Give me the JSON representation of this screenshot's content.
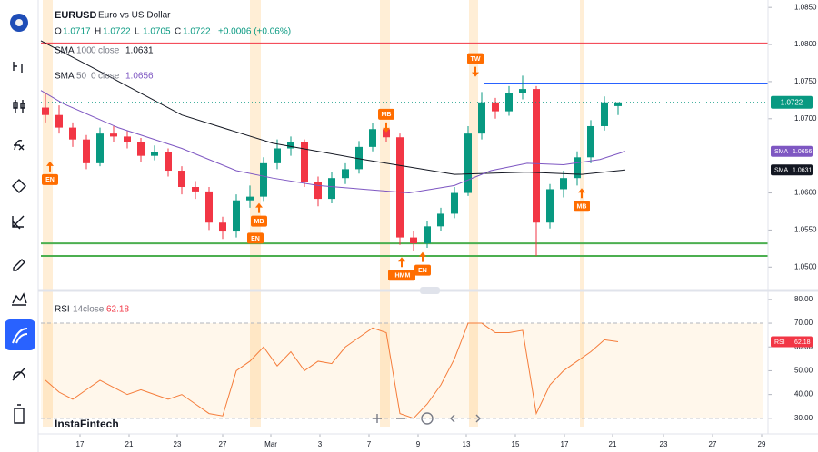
{
  "header": {
    "symbol": "EURUSD",
    "description": "Euro vs US Dollar",
    "ohlc_labels": [
      "O",
      "H",
      "L",
      "C"
    ],
    "change": "+0.0006 (+0.06%)"
  },
  "watermark": "InstaFintech",
  "chart_data": [
    {
      "type": "candlestick",
      "up_color": "#089981",
      "down_color": "#f23645",
      "x": [
        1,
        4,
        7,
        10,
        13,
        16,
        19,
        22,
        25,
        28,
        31,
        34,
        37,
        40,
        43,
        46,
        49,
        52,
        55,
        58,
        61,
        64,
        67,
        70,
        73,
        76,
        79,
        82,
        85,
        88,
        91,
        94,
        97,
        100,
        103,
        106,
        109,
        112,
        115,
        118,
        121,
        124,
        127
      ],
      "open": [
        1.0715,
        1.0705,
        1.0688,
        1.0672,
        1.064,
        1.068,
        1.0676,
        1.0668,
        1.065,
        1.0655,
        1.063,
        1.0608,
        1.0602,
        1.056,
        1.0548,
        1.059,
        1.0595,
        1.064,
        1.066,
        1.0668,
        1.0615,
        1.0592,
        1.062,
        1.0632,
        1.0662,
        1.0686,
        1.0675,
        1.054,
        1.0532,
        1.0555,
        1.0572,
        1.06,
        1.068,
        1.0722,
        1.071,
        1.0735,
        1.074,
        1.056,
        1.0605,
        1.062,
        1.0648,
        1.069,
        1.0717
      ],
      "high": [
        1.0735,
        1.0718,
        1.0695,
        1.0678,
        1.0688,
        1.069,
        1.0684,
        1.0674,
        1.0664,
        1.066,
        1.0636,
        1.0616,
        1.0608,
        1.0568,
        1.0598,
        1.061,
        1.0648,
        1.0672,
        1.0676,
        1.0672,
        1.0622,
        1.0628,
        1.064,
        1.067,
        1.0694,
        1.0692,
        1.068,
        1.0548,
        1.0562,
        1.058,
        1.0608,
        1.069,
        1.0736,
        1.0728,
        1.0744,
        1.0758,
        1.0744,
        1.0612,
        1.063,
        1.0656,
        1.0698,
        1.073,
        1.0722
      ],
      "low": [
        1.0695,
        1.068,
        1.0662,
        1.0632,
        1.0636,
        1.0668,
        1.066,
        1.0642,
        1.0644,
        1.0622,
        1.0598,
        1.0592,
        1.055,
        1.0538,
        1.054,
        1.058,
        1.0588,
        1.0632,
        1.065,
        1.0608,
        1.0582,
        1.0586,
        1.0612,
        1.0626,
        1.0656,
        1.0668,
        1.053,
        1.0522,
        1.0526,
        1.0548,
        1.0566,
        1.0596,
        1.0672,
        1.07,
        1.0704,
        1.0726,
        1.0515,
        1.0552,
        1.0594,
        1.061,
        1.064,
        1.0684,
        1.0705
      ],
      "close": [
        1.0705,
        1.0688,
        1.0672,
        1.064,
        1.068,
        1.0676,
        1.0668,
        1.065,
        1.0655,
        1.063,
        1.0608,
        1.0602,
        1.056,
        1.0548,
        1.059,
        1.0595,
        1.064,
        1.066,
        1.0668,
        1.0615,
        1.0592,
        1.062,
        1.0632,
        1.0662,
        1.0686,
        1.0675,
        1.054,
        1.0532,
        1.0555,
        1.0572,
        1.06,
        1.068,
        1.0722,
        1.071,
        1.0735,
        1.074,
        1.056,
        1.0605,
        1.062,
        1.0648,
        1.069,
        1.0722,
        1.0722
      ],
      "xlim": [
        0,
        159
      ],
      "xticks": [
        {
          "value": 8.6,
          "label": "17"
        },
        {
          "value": 19.4,
          "label": "21"
        },
        {
          "value": 30,
          "label": "23"
        },
        {
          "value": 40,
          "label": "27"
        },
        {
          "value": 50.6,
          "label": "Mar"
        },
        {
          "value": 61.4,
          "label": "3"
        },
        {
          "value": 72.2,
          "label": "7"
        },
        {
          "value": 83,
          "label": "9"
        },
        {
          "value": 93.6,
          "label": "13"
        },
        {
          "value": 104.4,
          "label": "15"
        },
        {
          "value": 115.2,
          "label": "17"
        },
        {
          "value": 125.8,
          "label": "21"
        },
        {
          "value": 137,
          "label": "23"
        },
        {
          "value": 147.8,
          "label": "27"
        },
        {
          "value": 158.6,
          "label": "29"
        }
      ],
      "ylim": [
        1.0471,
        1.086
      ],
      "yticks": [
        {
          "value": 1.085,
          "label": "1.0850"
        },
        {
          "value": 1.08,
          "label": "1.0800"
        },
        {
          "value": 1.075,
          "label": "1.0750"
        },
        {
          "value": 1.07,
          "label": "1.0700"
        },
        {
          "value": 1.06,
          "label": "1.0600"
        },
        {
          "value": 1.055,
          "label": "1.0550"
        },
        {
          "value": 1.05,
          "label": "1.0500"
        }
      ],
      "lines": [
        {
          "name": "SMA",
          "params": [
            100,
            0
          ],
          "source": "close",
          "color": "#131722",
          "x": [
            0,
            11,
            31,
            51,
            71,
            91,
            107,
            119,
            128.6
          ],
          "values": [
            1.0805,
            1.077,
            1.0705,
            1.0667,
            1.0645,
            1.0625,
            1.0628,
            1.0625,
            1.0631
          ]
        },
        {
          "name": "SMA",
          "params": [
            50,
            0
          ],
          "source": "close",
          "color": "#7e57c2",
          "x": [
            0,
            5,
            17,
            31,
            43,
            51,
            61,
            71,
            81,
            91,
            99,
            107,
            115,
            123,
            128.6
          ],
          "values": [
            1.0738,
            1.072,
            1.0688,
            1.066,
            1.063,
            1.062,
            1.061,
            1.0605,
            1.06,
            1.061,
            1.063,
            1.064,
            1.0638,
            1.0645,
            1.0656
          ]
        }
      ],
      "levels": [
        {
          "value": 1.0802,
          "color": "#f23645"
        },
        {
          "value": 1.0748,
          "color": "#2962ff",
          "from_x": 97.6
        },
        {
          "value": 1.0532,
          "color": "#4caf50"
        },
        {
          "value": 1.0515,
          "color": "#4caf50"
        }
      ],
      "highlight_bands": [
        [
          0.4,
          2.6
        ],
        [
          46,
          48.4
        ],
        [
          74.6,
          76.8
        ],
        [
          94.2,
          96.2
        ],
        [
          118.6,
          119.4
        ]
      ],
      "annotations": [
        {
          "text": "EN",
          "x": 2,
          "y": 1.0618,
          "dir": "up"
        },
        {
          "text": "MB",
          "x": 48,
          "y": 1.0562,
          "dir": "up"
        },
        {
          "text": "EN",
          "x": 47.2,
          "y": 1.0539
        },
        {
          "text": "MB",
          "x": 76,
          "y": 1.0706,
          "dir": "down"
        },
        {
          "text": "IHMM",
          "x": 79.4,
          "y": 1.0489,
          "dir": "up"
        },
        {
          "text": "EN",
          "x": 84,
          "y": 1.0496,
          "dir": "up"
        },
        {
          "text": "TW",
          "x": 95.6,
          "y": 1.0781,
          "dir": "down"
        },
        {
          "text": "MB",
          "x": 119,
          "y": 1.0582,
          "dir": "up"
        }
      ]
    },
    {
      "type": "line",
      "name": "RSI",
      "params": [
        14
      ],
      "source": "close",
      "color": "#f57c3a",
      "badge_color": "#f23645",
      "x": [
        1,
        4,
        7,
        10,
        13,
        16,
        19,
        22,
        25,
        28,
        31,
        34,
        37,
        40,
        43,
        46,
        49,
        52,
        55,
        58,
        61,
        64,
        67,
        70,
        73,
        76,
        79,
        82,
        85,
        88,
        91,
        94,
        97,
        100,
        103,
        106,
        109,
        112,
        115,
        118,
        121,
        124,
        127
      ],
      "values": [
        46,
        41,
        38,
        42,
        46,
        43,
        40,
        42,
        40,
        38,
        40,
        36,
        32,
        31,
        50,
        54,
        60,
        52,
        58,
        50,
        54,
        53,
        60,
        64,
        68,
        66,
        32,
        30,
        36,
        44,
        55,
        70,
        70,
        66,
        66,
        67,
        32,
        44,
        50,
        54,
        58,
        63,
        62.18
      ],
      "ylim": [
        26.5,
        83
      ],
      "yticks": [
        {
          "value": 80,
          "label": "80.00"
        },
        {
          "value": 70,
          "label": "70.00"
        },
        {
          "value": 60,
          "label": "60.00"
        },
        {
          "value": 50,
          "label": "50.00"
        },
        {
          "value": 40,
          "label": "40.00"
        },
        {
          "value": 30,
          "label": "30.00"
        }
      ],
      "band": [
        30,
        70
      ]
    }
  ]
}
